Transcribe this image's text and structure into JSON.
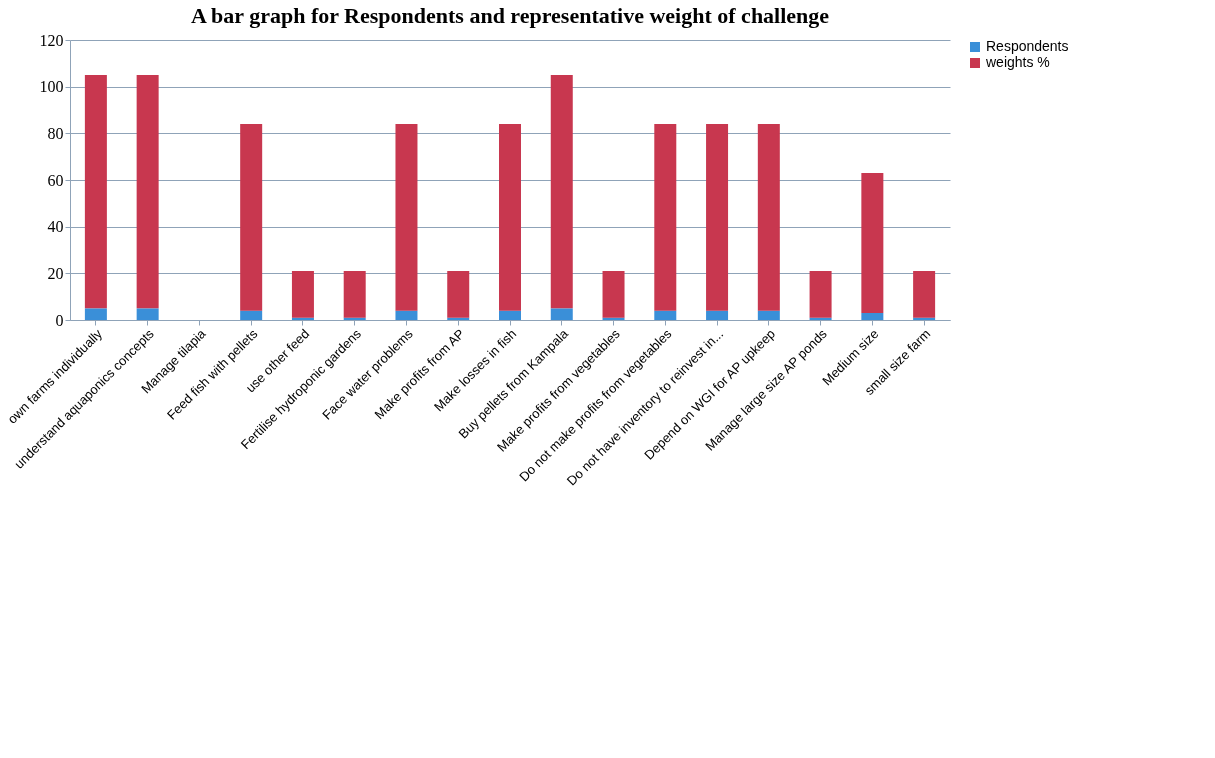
{
  "chart_data": {
    "type": "bar",
    "title": "A bar graph for Respondents and representative weight of challenge",
    "categories": [
      "own farms individually",
      "understand aquaponics concepts",
      "Manage tilapia",
      "Feed fish with pellets",
      "use other feed",
      "Fertilise hydroponic gardens",
      "Face water problems",
      "Make profits from AP",
      "Make losses in fish",
      "Buy pellets from Kampala",
      "Make profits from vegetables",
      "Do not make profits from vegetables",
      "Do not have inventory to reinvest in...",
      "Depend on WGI for AP upkeep",
      "Manage large size AP ponds",
      "Medium size",
      "small size farm"
    ],
    "stacked": true,
    "series": [
      {
        "name": "Respondents",
        "color": "#3a8fd8",
        "values": [
          5,
          5,
          0,
          4,
          1,
          1,
          4,
          1,
          4,
          5,
          1,
          4,
          4,
          4,
          1,
          3,
          1
        ]
      },
      {
        "name": "weights %",
        "color": "#c8374f",
        "values": [
          100,
          100,
          0,
          80,
          20,
          20,
          80,
          20,
          80,
          100,
          20,
          80,
          80,
          80,
          20,
          60,
          20
        ]
      }
    ],
    "ylim": [
      0,
      120
    ],
    "yticks": [
      0,
      20,
      40,
      60,
      80,
      100,
      120
    ],
    "grid": "y",
    "legend": "right"
  }
}
